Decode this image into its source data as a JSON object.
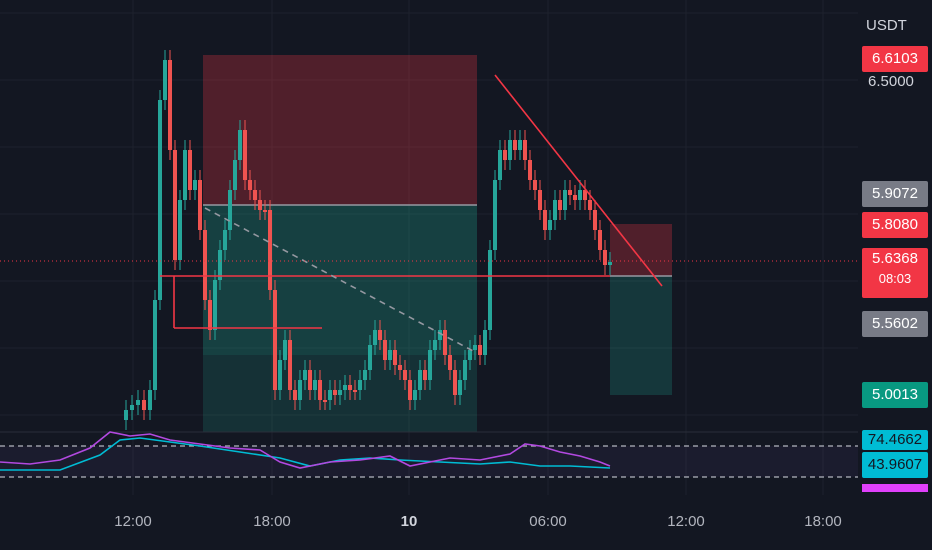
{
  "currency": "USDT",
  "price_scale": {
    "labels": [
      {
        "value": "6.6103",
        "name": "tag-upper-target",
        "bg": "#f23645",
        "color": "#ffffff"
      },
      {
        "value": "6.5000",
        "name": "tick-6-5000",
        "bg": "none",
        "color": "#d1d4dc"
      },
      {
        "value": "5.9072",
        "name": "tag-gray-level-upper",
        "bg": "#787b86",
        "color": "#ffffff"
      },
      {
        "value": "5.8080",
        "name": "tag-entry-level",
        "bg": "#f23645",
        "color": "#ffffff"
      },
      {
        "value": "5.6368",
        "name": "tag-current-price",
        "bg": "#f23645",
        "color": "#ffffff"
      },
      {
        "value": "5.5602",
        "name": "tag-gray-level-lower",
        "bg": "#787b86",
        "color": "#ffffff"
      },
      {
        "value": "5.0013",
        "name": "tag-lower-target",
        "bg": "#089981",
        "color": "#ffffff"
      }
    ],
    "countdown": "08:03"
  },
  "indicator_scale": {
    "labels": [
      {
        "value": "74.4662",
        "name": "tag-rsi-upper",
        "bg": "#00bcd4"
      },
      {
        "value": "43.9607",
        "name": "tag-rsi-value",
        "bg": "#00bcd4"
      }
    ]
  },
  "time_axis": {
    "ticks": [
      {
        "label": "12:00",
        "bold": false
      },
      {
        "label": "18:00",
        "bold": false
      },
      {
        "label": "10",
        "bold": true
      },
      {
        "label": "06:00",
        "bold": false
      },
      {
        "label": "12:00",
        "bold": false
      },
      {
        "label": "18:00",
        "bold": false
      }
    ]
  },
  "colors": {
    "background": "#131722",
    "up": "#26a69a",
    "down": "#ef5350",
    "stop_zone": "#5b2a30",
    "target_zone": "#1b4a46",
    "rsi_line": "#b249e0",
    "rsi_ma": "#00bcd4",
    "trendline": "#f23645"
  }
}
